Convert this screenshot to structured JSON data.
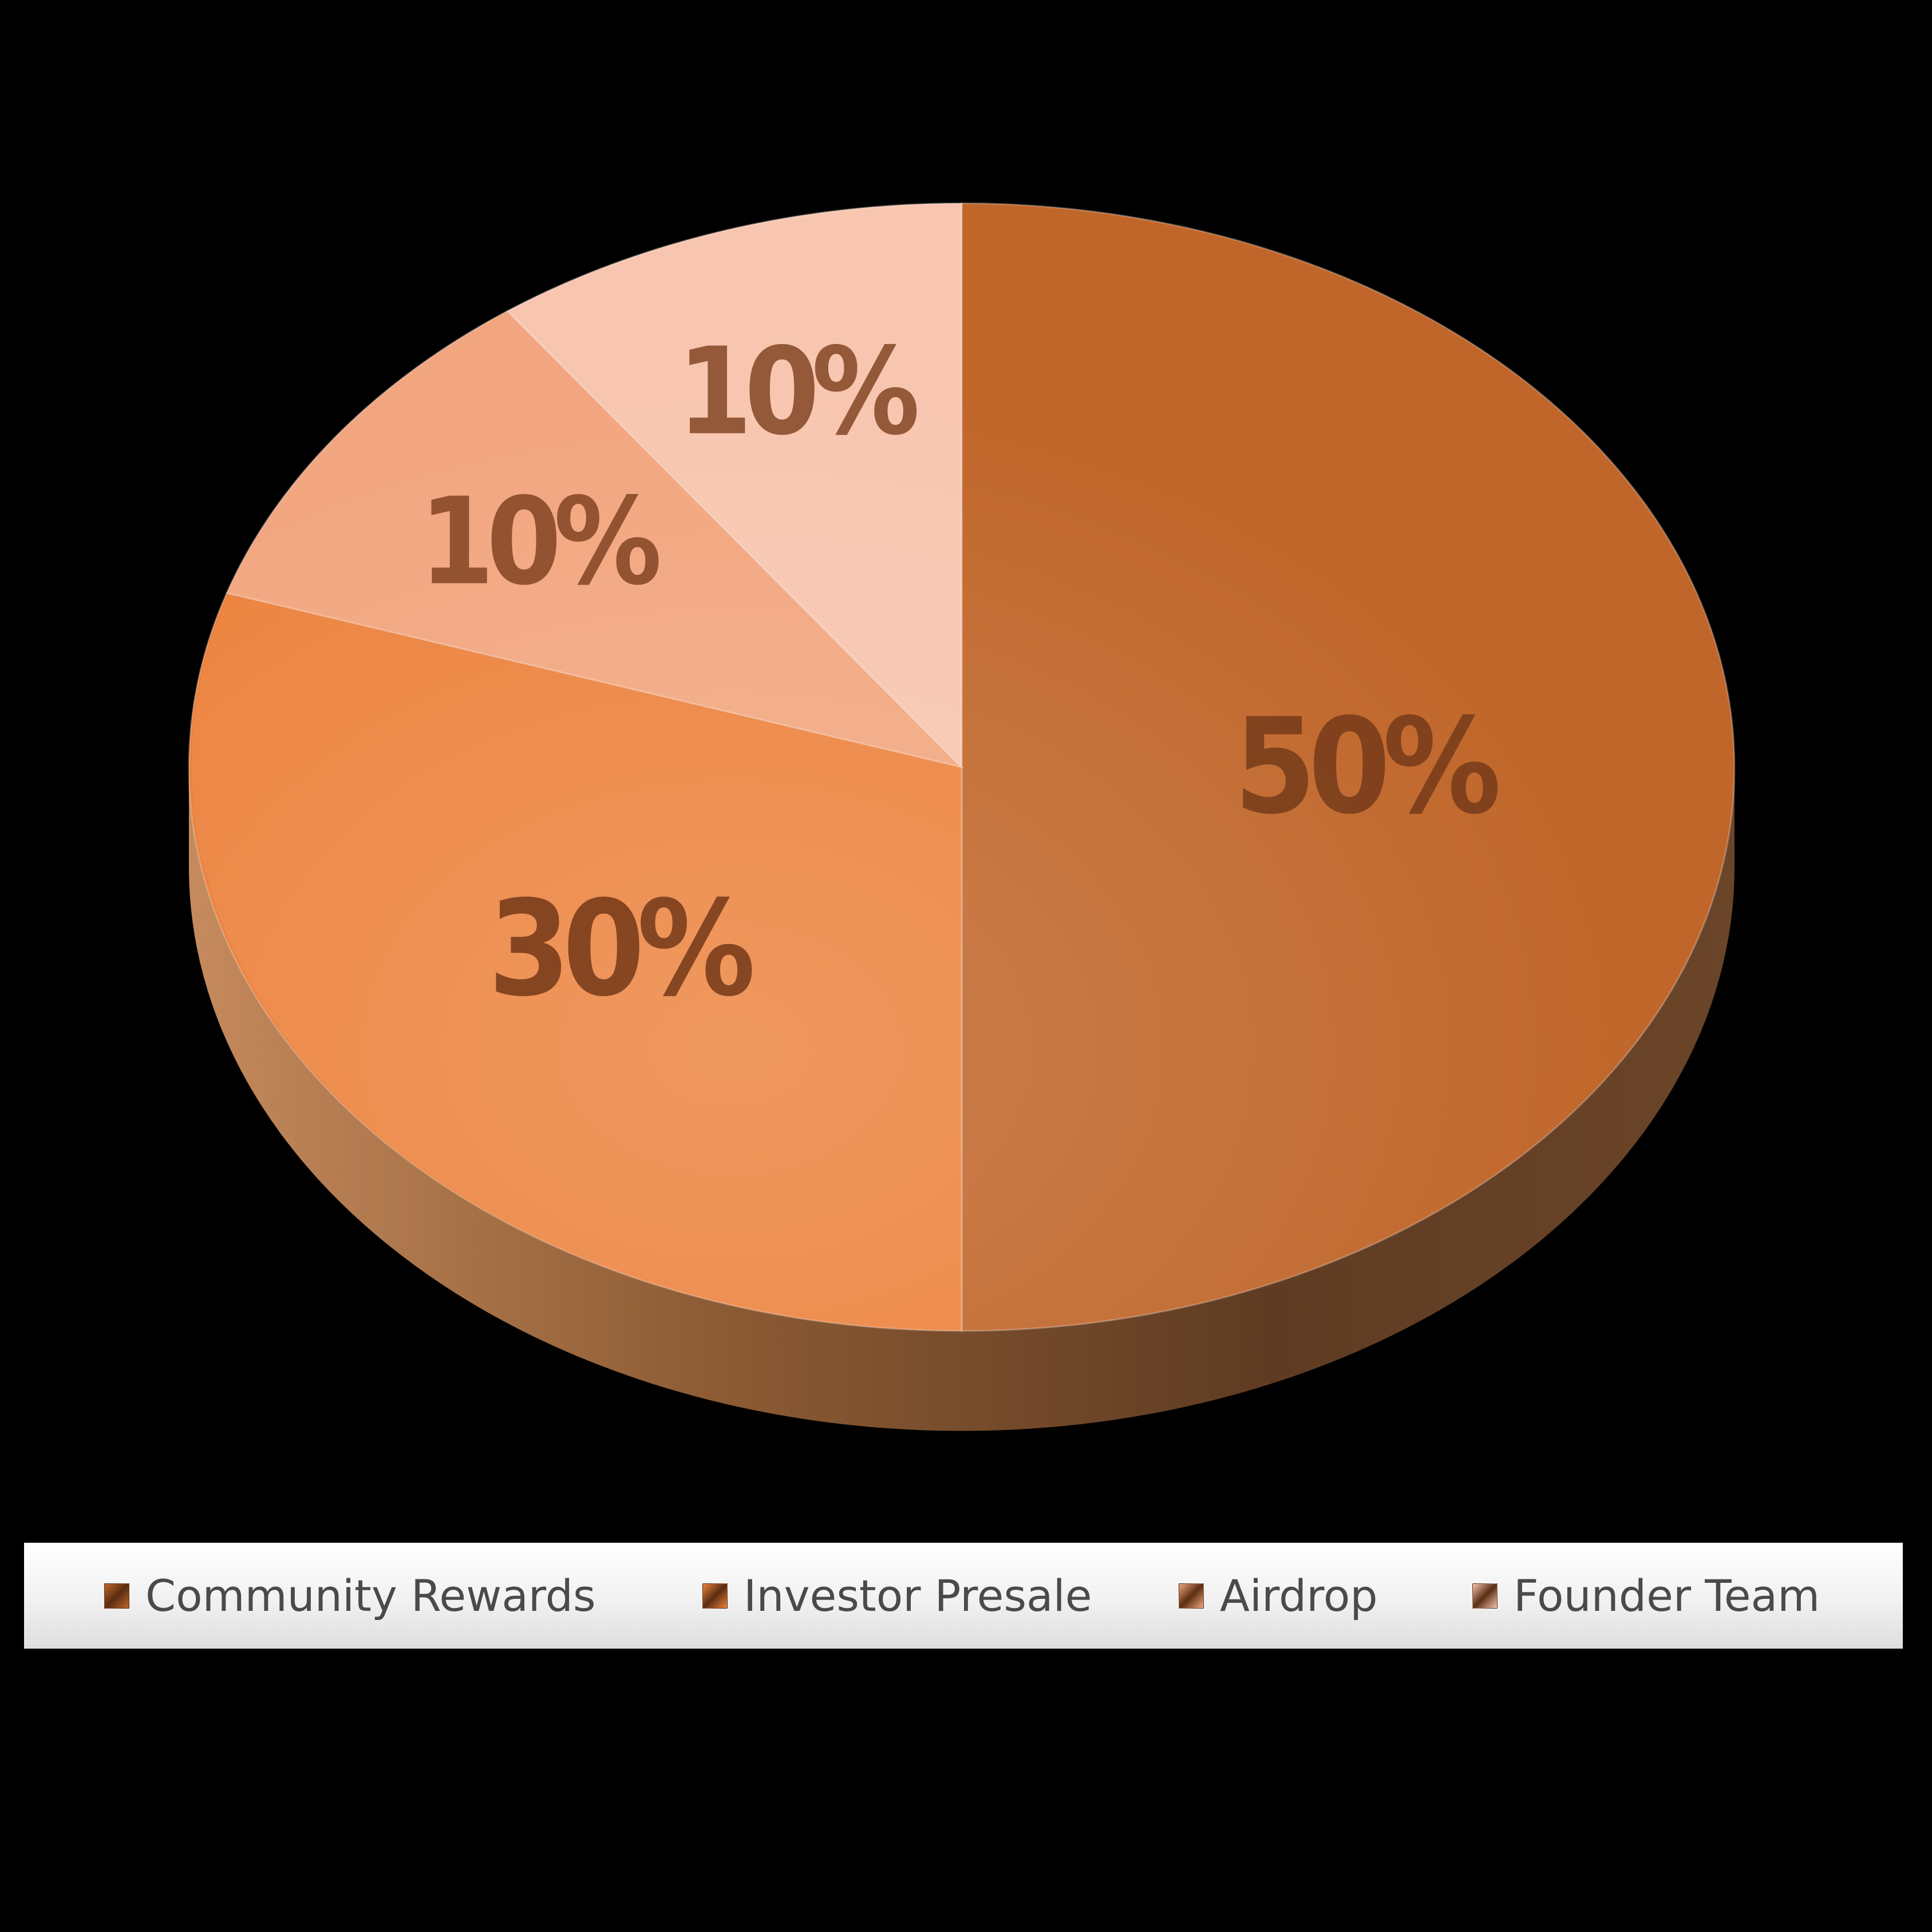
{
  "chart_data": {
    "type": "pie",
    "style": "3d",
    "title": "",
    "start_angle_deg": 0,
    "direction": "clockwise",
    "slices": [
      {
        "name": "Community Rewards",
        "value": 50,
        "label": "50%",
        "color": "#c0662a"
      },
      {
        "name": "Investor Presale",
        "value": 30,
        "label": "30%",
        "color": "#ec823d"
      },
      {
        "name": "Airdrop",
        "value": 10,
        "label": "10%",
        "color": "#f2a67f"
      },
      {
        "name": "Founder Team",
        "value": 10,
        "label": "10%",
        "color": "#f8c6b0"
      }
    ],
    "label_color": "#7a3d1c",
    "legend": {
      "placement": "bottom",
      "entries": [
        "Community Rewards",
        "Investor Presale",
        "Airdrop",
        "Founder Team"
      ]
    }
  }
}
